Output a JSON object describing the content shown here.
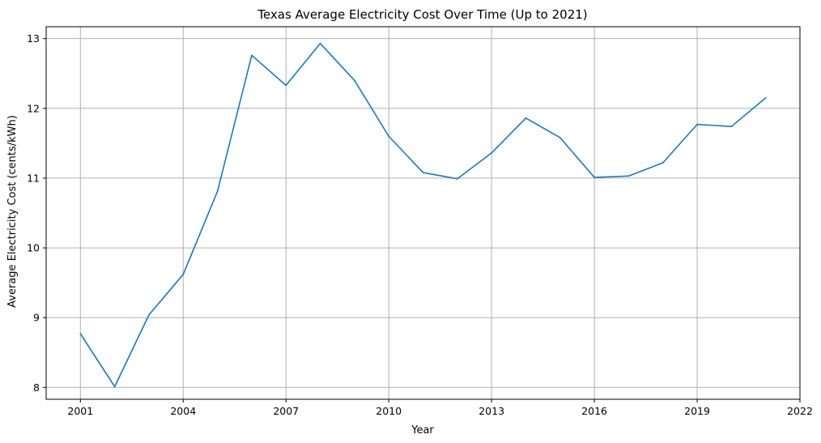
{
  "chart_data": {
    "type": "line",
    "title": "Texas Average Electricity Cost Over Time (Up to 2021)",
    "xlabel": "Year",
    "ylabel": "Average Electricity Cost (cents/kWh)",
    "xlim": [
      2000.0,
      2022.0
    ],
    "ylim": [
      7.83,
      13.17
    ],
    "x_ticks": [
      2001,
      2004,
      2007,
      2010,
      2013,
      2016,
      2019,
      2022
    ],
    "y_ticks": [
      8,
      9,
      10,
      11,
      12,
      13
    ],
    "grid": true,
    "series": [
      {
        "color": "#1f77b4",
        "x": [
          2001,
          2002,
          2003,
          2004,
          2005,
          2006,
          2007,
          2008,
          2009,
          2010,
          2011,
          2012,
          2013,
          2014,
          2015,
          2016,
          2017,
          2018,
          2019,
          2020,
          2021
        ],
        "y": [
          8.77,
          8.01,
          9.04,
          9.62,
          10.81,
          12.76,
          12.33,
          12.93,
          12.4,
          11.6,
          11.08,
          10.99,
          11.36,
          11.86,
          11.58,
          11.01,
          11.03,
          11.22,
          11.77,
          11.74,
          12.15
        ]
      }
    ]
  }
}
